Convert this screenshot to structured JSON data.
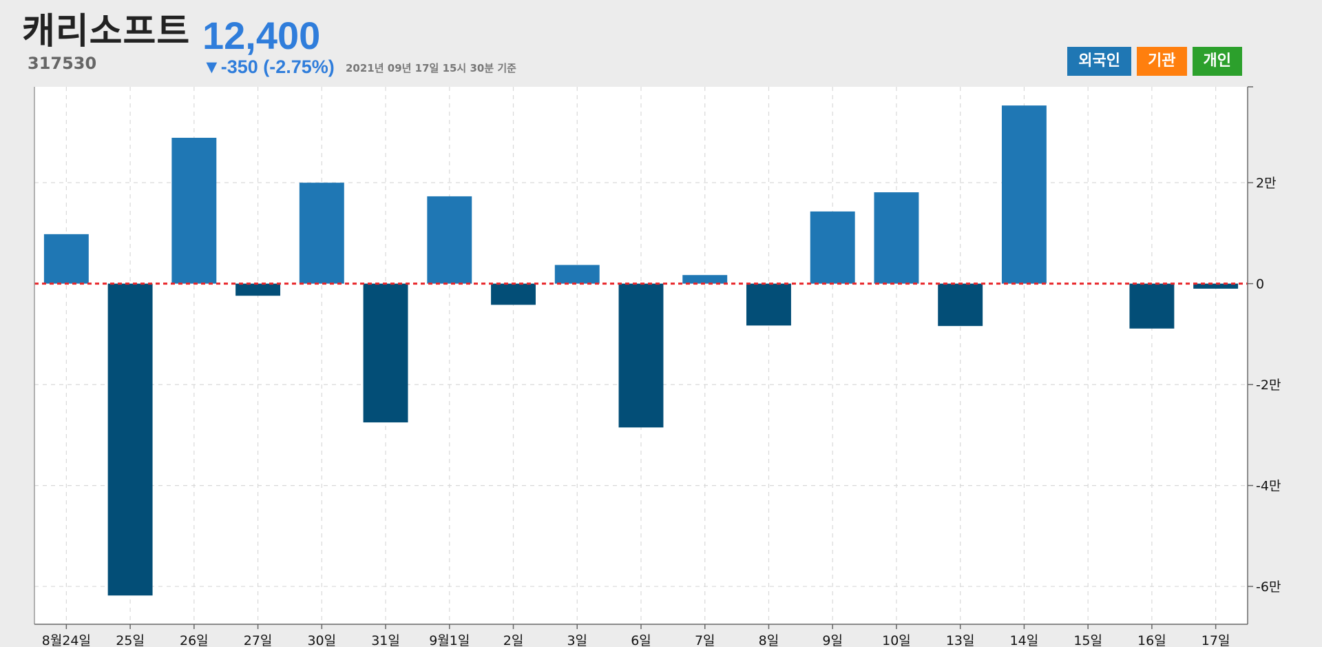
{
  "header": {
    "title": "캐리소프트",
    "code": "317530",
    "price": "12,400",
    "change": "▼-350 (-2.75%)",
    "timestamp": "2021년 09년 17일 15시 30분 기준"
  },
  "buttons": [
    {
      "label": "외국인",
      "color": "#1f77b4"
    },
    {
      "label": "기관",
      "color": "#ff7f0e"
    },
    {
      "label": "개인",
      "color": "#2ca02c"
    }
  ],
  "colors": {
    "positive": "#1f77b4",
    "negative": "#034e77",
    "zero_line": "#e8262a",
    "grid": "#d8d8d8"
  },
  "chart_data": {
    "type": "bar",
    "series_name": "외국인",
    "categories": [
      "8월24일",
      "25일",
      "26일",
      "27일",
      "30일",
      "31일",
      "9월1일",
      "2일",
      "3일",
      "6일",
      "7일",
      "8일",
      "9일",
      "10일",
      "13일",
      "14일",
      "15일",
      "16일",
      "17일"
    ],
    "values": [
      9800,
      -61800,
      28900,
      -2400,
      20000,
      -27500,
      17300,
      -4200,
      3700,
      -28500,
      1700,
      -8300,
      14300,
      18100,
      -8400,
      35300,
      0,
      -8900,
      -1000
    ],
    "ylim": [
      -67500,
      39000
    ],
    "y_ticks": [
      -60000,
      -40000,
      -20000,
      0,
      20000
    ],
    "y_tick_labels": [
      "-6만",
      "-4만",
      "-2만",
      "0",
      "2만"
    ],
    "grid": true,
    "zero_line": true
  }
}
